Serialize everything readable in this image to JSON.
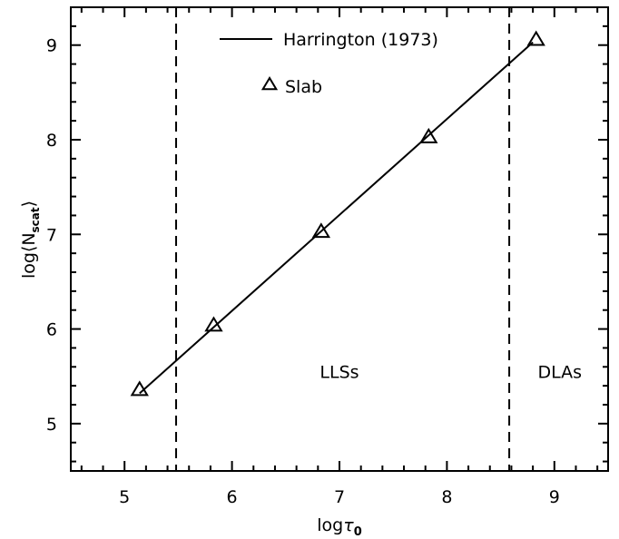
{
  "chart_data": {
    "type": "line",
    "xlabel_prefix": "log",
    "xlabel_symbol": "τ",
    "xlabel_sub": "0",
    "ylabel_prefix": "log⟨N",
    "ylabel_sub": "scat",
    "ylabel_suffix": "⟩",
    "xlim": [
      4.5,
      9.5
    ],
    "ylim": [
      4.5,
      9.4
    ],
    "xticks": [
      5,
      6,
      7,
      8,
      9
    ],
    "yticks": [
      5,
      6,
      7,
      8,
      9
    ],
    "series": [
      {
        "name": "Harrington (1973)",
        "style": "solid-line",
        "x": [
          5.14,
          8.8
        ],
        "y": [
          5.32,
          9.03
        ]
      },
      {
        "name": "Slab",
        "style": "triangle-markers",
        "x": [
          5.14,
          5.83,
          6.83,
          7.83,
          8.83
        ],
        "y": [
          5.36,
          6.04,
          7.03,
          8.03,
          9.06
        ]
      }
    ],
    "vlines": [
      5.48,
      8.58
    ],
    "annotations": [
      {
        "text": "LLSs",
        "x": 7.0,
        "y": 5.55
      },
      {
        "text": "DLAs",
        "x": 9.05,
        "y": 5.55
      }
    ],
    "legend": {
      "placement": "top-center"
    },
    "grid": false,
    "colors": {
      "line": "#000000",
      "background": "#ffffff"
    }
  }
}
